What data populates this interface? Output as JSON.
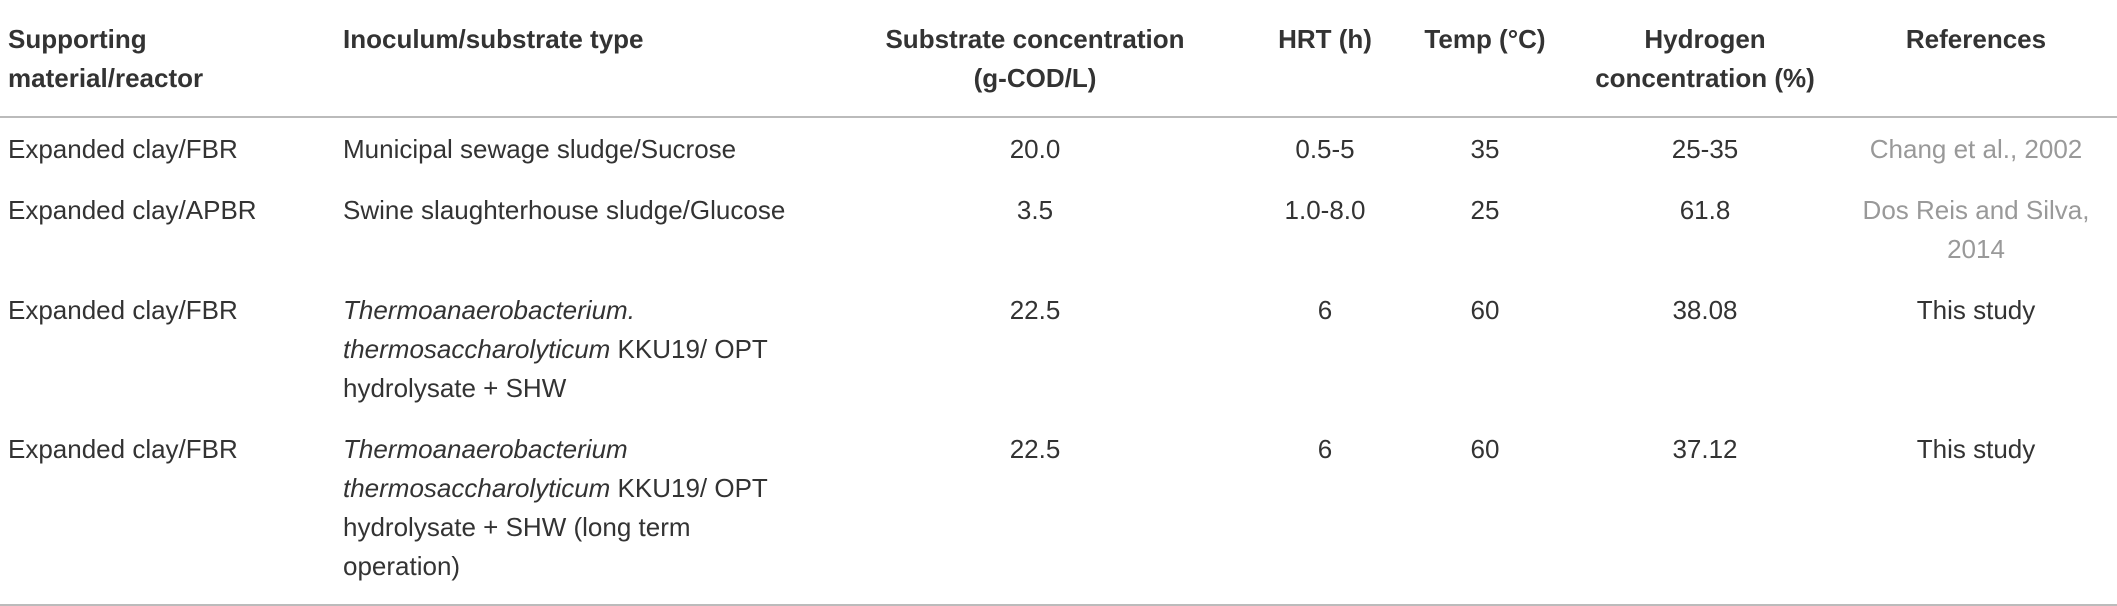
{
  "table": {
    "header": [
      "Supporting material/reactor",
      "Inoculum/substrate type",
      "Substrate concentration (g-COD/L)",
      "HRT (h)",
      "Temp (°C)",
      "Hydrogen concentration (%)",
      "References"
    ],
    "rows": [
      [
        "Expanded clay/FBR",
        "Municipal sewage sludge/Sucrose",
        "20.0",
        "0.5-5",
        "35",
        "25-35",
        "Chang et al., 2002"
      ],
      [
        "Expanded clay/APBR",
        "Swine slaughterhouse sludge/Glucose",
        "3.5",
        "1.0-8.0",
        "25",
        "61.8",
        "Dos Reis and Silva, 2014"
      ],
      [
        "Expanded clay/FBR",
        {
          "italic": "Thermoanaerobacterium. thermosaccharolyticum",
          "plain": " KKU19/ OPT hydrolysate + SHW"
        },
        "22.5",
        "6",
        "60",
        "38.08",
        "This study"
      ],
      [
        "Expanded clay/FBR",
        {
          "italic": "Thermoanaerobacterium thermosaccharolyticum",
          "plain": " KKU19/ OPT hydrolysate + SHW (long term operation)"
        },
        "22.5",
        "6",
        "60",
        "37.12",
        "This study"
      ]
    ]
  }
}
